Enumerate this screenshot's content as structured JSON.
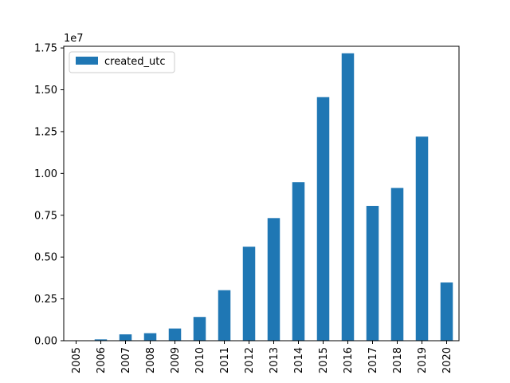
{
  "chart_data": {
    "type": "bar",
    "categories": [
      "2005",
      "2006",
      "2007",
      "2008",
      "2009",
      "2010",
      "2011",
      "2012",
      "2013",
      "2014",
      "2015",
      "2016",
      "2017",
      "2018",
      "2019",
      "2020"
    ],
    "series": [
      {
        "name": "created_utc",
        "color": "#1f77b4",
        "values": [
          5000,
          80000,
          380000,
          450000,
          730000,
          1420000,
          3020000,
          5620000,
          7330000,
          9480000,
          14560000,
          17180000,
          8060000,
          9130000,
          12200000,
          3480000
        ]
      }
    ],
    "ylim": [
      0,
      17600000
    ],
    "yticks": [
      0,
      2500000,
      5000000,
      7500000,
      10000000,
      12500000,
      15000000,
      17500000
    ],
    "ytick_labels": [
      "0.00",
      "0.25",
      "0.50",
      "0.75",
      "1.00",
      "1.25",
      "1.50",
      "1.75"
    ],
    "y_offset_label": "1e7",
    "xlabel": "",
    "legend_position": "upper-left",
    "grid": false
  }
}
